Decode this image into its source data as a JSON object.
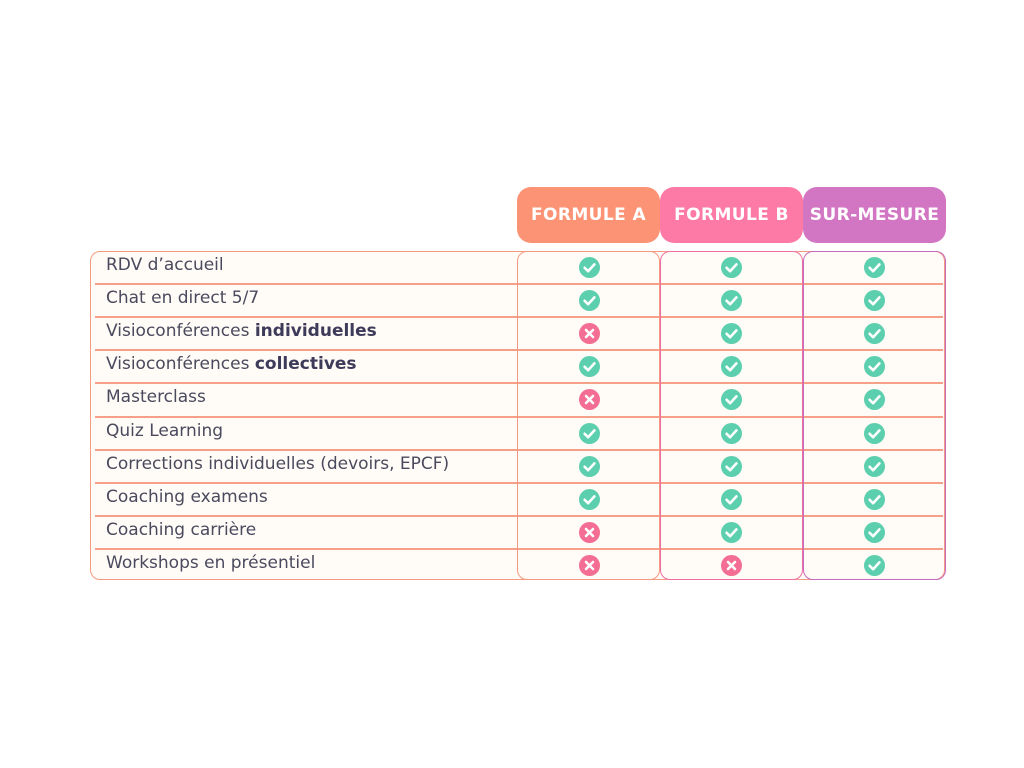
{
  "headers": [
    "FORMULE A",
    "FORMULE B",
    "SUR-MESURE"
  ],
  "colors": {
    "formule_a": "#fc9375",
    "formule_b": "#fd7aa6",
    "sur_mesure": "#d276c4",
    "check": "#5ccfae",
    "cross": "#f46d93"
  },
  "rows": [
    {
      "label": "RDV d’accueil",
      "bold": "",
      "values": [
        "check",
        "check",
        "check"
      ]
    },
    {
      "label": "Chat en direct 5/7",
      "bold": "",
      "values": [
        "check",
        "check",
        "check"
      ]
    },
    {
      "label": "Visioconférences ",
      "bold": "individuelles",
      "values": [
        "cross",
        "check",
        "check"
      ]
    },
    {
      "label": "Visioconférences ",
      "bold": "collectives",
      "values": [
        "check",
        "check",
        "check"
      ]
    },
    {
      "label": "Masterclass",
      "bold": "",
      "values": [
        "cross",
        "check",
        "check"
      ]
    },
    {
      "label": "Quiz Learning",
      "bold": "",
      "values": [
        "check",
        "check",
        "check"
      ]
    },
    {
      "label": "Corrections individuelles (devoirs, EPCF)",
      "bold": "",
      "values": [
        "check",
        "check",
        "check"
      ]
    },
    {
      "label": "Coaching examens",
      "bold": "",
      "values": [
        "check",
        "check",
        "check"
      ]
    },
    {
      "label": "Coaching carrière",
      "bold": "",
      "values": [
        "cross",
        "check",
        "check"
      ]
    },
    {
      "label": "Workshops en présentiel",
      "bold": "",
      "values": [
        "cross",
        "cross",
        "check"
      ]
    }
  ]
}
